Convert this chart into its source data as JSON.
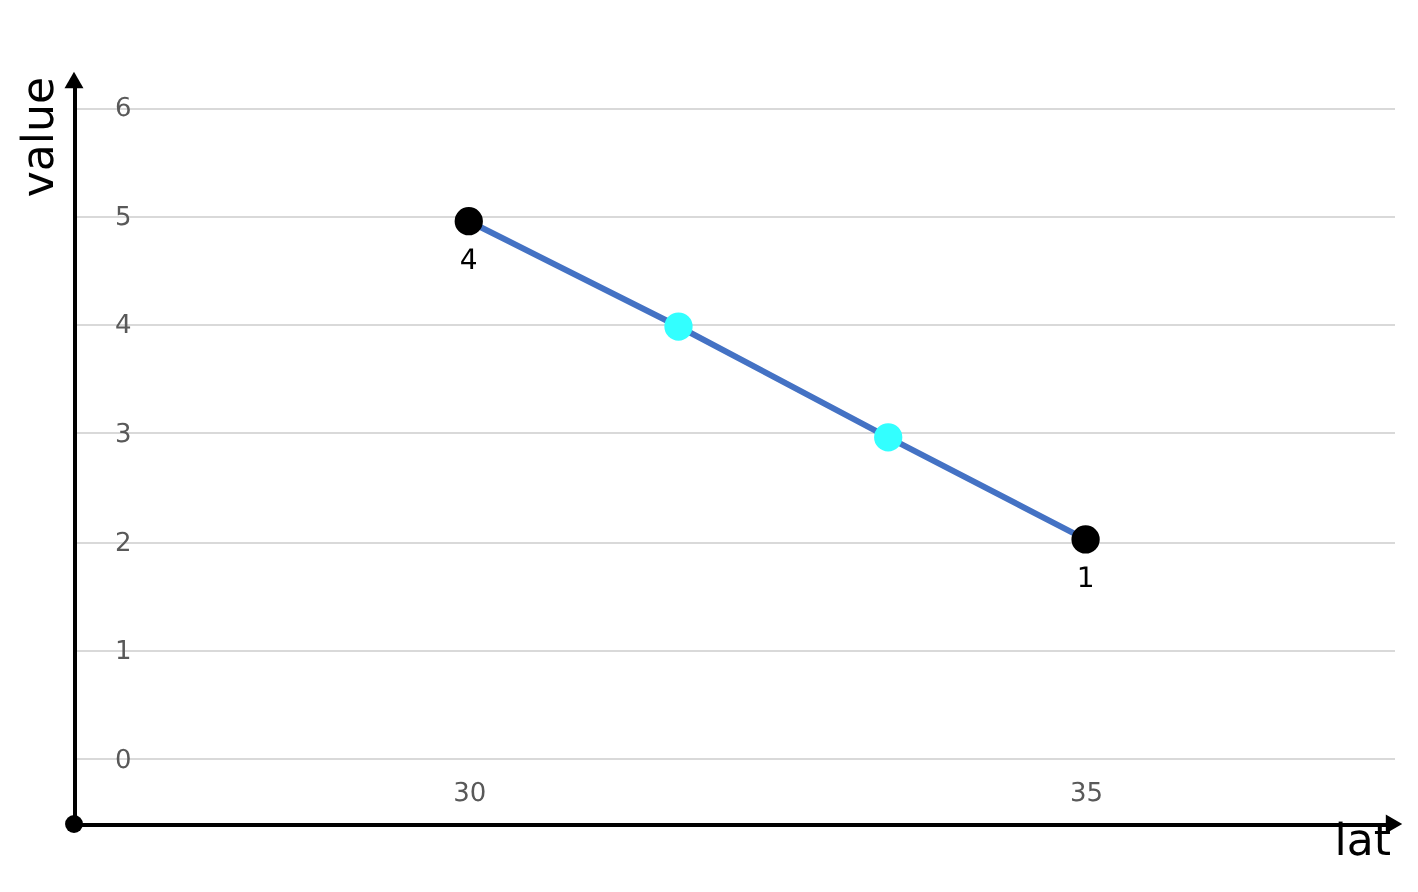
{
  "chart_data": {
    "type": "line",
    "xlabel": "lat",
    "ylabel": "value",
    "x": [
      30,
      31.7,
      33.4,
      35
    ],
    "series": [
      {
        "color": "#4472c4",
        "colors": [
          "#000000",
          "#33ffff",
          "#33ffff",
          "#000000"
        ],
        "values": [
          4.95,
          3.98,
          2.96,
          2.02
        ]
      }
    ],
    "annotations": [
      {
        "text": "4",
        "x": 30,
        "y": 4.95
      },
      {
        "text": "1",
        "x": 35,
        "y": 2.02
      }
    ],
    "xlim": [
      26.8,
      37.5
    ],
    "ylim": [
      -0.6,
      6.25
    ],
    "xticks": [
      30,
      35
    ],
    "yticks": [
      0,
      1,
      2,
      3,
      4,
      5,
      6
    ],
    "grid": "y",
    "marker": "circle",
    "line_style": "solid"
  }
}
